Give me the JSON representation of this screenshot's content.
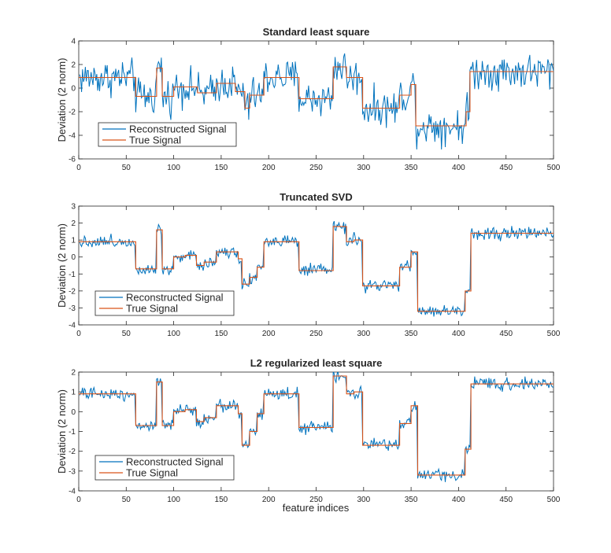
{
  "colors": {
    "reconstructed": "#0072BD",
    "true_signal": "#D95319",
    "axes": "#262626",
    "background": "#ffffff"
  },
  "figure": {
    "xlabel": "feature indices"
  },
  "chart_data": [
    {
      "type": "line",
      "title": "Standard least square",
      "ylabel": "Deviation (2 norm)",
      "xlabel": "",
      "xlim": [
        0,
        500
      ],
      "ylim": [
        -6,
        4
      ],
      "xticks": [
        "0",
        "50",
        "100",
        "150",
        "200",
        "250",
        "300",
        "350",
        "400",
        "450",
        "500"
      ],
      "yticks": [
        "-6",
        "-4",
        "-2",
        "0",
        "2",
        "4"
      ],
      "legend": {
        "position": "bottom-left",
        "entries": [
          "Reconstructed Signal",
          "True Signal"
        ]
      },
      "noise": 0.75,
      "series": [
        {
          "name": "Reconstructed Signal",
          "style": "noisy"
        },
        {
          "name": "True Signal",
          "style": "step",
          "segments": [
            [
              0,
              60,
              0.9
            ],
            [
              60,
              82,
              -0.7
            ],
            [
              82,
              88,
              1.7
            ],
            [
              88,
              100,
              -0.7
            ],
            [
              100,
              125,
              0.1
            ],
            [
              125,
              145,
              -0.4
            ],
            [
              145,
              165,
              0.4
            ],
            [
              165,
              175,
              -0.3
            ],
            [
              175,
              180,
              -1.7
            ],
            [
              180,
              195,
              -0.6
            ],
            [
              195,
              232,
              0.9
            ],
            [
              232,
              268,
              -0.9
            ],
            [
              268,
              282,
              1.8
            ],
            [
              282,
              292,
              0.9
            ],
            [
              292,
              299,
              0.9
            ],
            [
              299,
              338,
              -1.7
            ],
            [
              338,
              350,
              -0.6
            ],
            [
              350,
              355,
              0.3
            ],
            [
              355,
              408,
              -3.2
            ],
            [
              408,
              412,
              -2.0
            ],
            [
              412,
              500,
              1.4
            ]
          ]
        }
      ]
    },
    {
      "type": "line",
      "title": "Truncated SVD",
      "ylabel": "Deviation (2 norm)",
      "xlabel": "",
      "xlim": [
        0,
        500
      ],
      "ylim": [
        -4,
        3
      ],
      "xticks": [
        "0",
        "50",
        "100",
        "150",
        "200",
        "250",
        "300",
        "350",
        "400",
        "450",
        "500"
      ],
      "yticks": [
        "-4",
        "-3",
        "-2",
        "-1",
        "0",
        "1",
        "2",
        "3"
      ],
      "legend": {
        "position": "bottom-left",
        "entries": [
          "Reconstructed Signal",
          "True Signal"
        ]
      },
      "noise": 0.18,
      "series": [
        {
          "name": "Reconstructed Signal",
          "style": "noisy"
        },
        {
          "name": "True Signal",
          "style": "step",
          "segments": [
            [
              0,
              60,
              0.9
            ],
            [
              60,
              82,
              -0.7
            ],
            [
              82,
              88,
              1.6
            ],
            [
              88,
              100,
              -0.7
            ],
            [
              100,
              112,
              0.0
            ],
            [
              112,
              124,
              0.1
            ],
            [
              124,
              132,
              -0.5
            ],
            [
              132,
              145,
              -0.3
            ],
            [
              145,
              160,
              0.3
            ],
            [
              160,
              168,
              0.3
            ],
            [
              168,
              172,
              -0.1
            ],
            [
              172,
              180,
              -1.6
            ],
            [
              180,
              188,
              -1.2
            ],
            [
              188,
              195,
              -0.6
            ],
            [
              195,
              232,
              0.9
            ],
            [
              232,
              268,
              -0.8
            ],
            [
              268,
              282,
              1.8
            ],
            [
              282,
              290,
              0.9
            ],
            [
              290,
              299,
              1.0
            ],
            [
              299,
              338,
              -1.7
            ],
            [
              338,
              350,
              -0.6
            ],
            [
              350,
              357,
              0.3
            ],
            [
              357,
              407,
              -3.2
            ],
            [
              407,
              413,
              -2.0
            ],
            [
              413,
              500,
              1.4
            ]
          ]
        }
      ]
    },
    {
      "type": "line",
      "title": "L2 regularized least square",
      "ylabel": "Deviation (2 norm)",
      "xlabel": "feature indices",
      "xlim": [
        0,
        500
      ],
      "ylim": [
        -4,
        2
      ],
      "xticks": [
        "0",
        "50",
        "100",
        "150",
        "200",
        "250",
        "300",
        "350",
        "400",
        "450",
        "500"
      ],
      "yticks": [
        "-4",
        "-3",
        "-2",
        "-1",
        "0",
        "1",
        "2"
      ],
      "legend": {
        "position": "bottom-left",
        "entries": [
          "Reconstructed Signal",
          "True Signal"
        ]
      },
      "noise": 0.15,
      "series": [
        {
          "name": "Reconstructed Signal",
          "style": "noisy"
        },
        {
          "name": "True Signal",
          "style": "step",
          "segments": [
            [
              0,
              60,
              0.9
            ],
            [
              60,
              82,
              -0.7
            ],
            [
              82,
              88,
              1.5
            ],
            [
              88,
              100,
              -0.7
            ],
            [
              100,
              112,
              0.0
            ],
            [
              112,
              124,
              0.1
            ],
            [
              124,
              132,
              -0.5
            ],
            [
              132,
              145,
              -0.3
            ],
            [
              145,
              160,
              0.3
            ],
            [
              160,
              168,
              0.3
            ],
            [
              168,
              172,
              -0.1
            ],
            [
              172,
              180,
              -1.7
            ],
            [
              180,
              188,
              -1.0
            ],
            [
              188,
              195,
              -0.1
            ],
            [
              195,
              232,
              0.9
            ],
            [
              232,
              268,
              -0.8
            ],
            [
              268,
              282,
              1.8
            ],
            [
              282,
              290,
              0.9
            ],
            [
              290,
              299,
              1.0
            ],
            [
              299,
              338,
              -1.7
            ],
            [
              338,
              350,
              -0.6
            ],
            [
              350,
              357,
              0.3
            ],
            [
              357,
              407,
              -3.2
            ],
            [
              407,
              413,
              -1.9
            ],
            [
              413,
              500,
              1.4
            ]
          ]
        }
      ]
    }
  ]
}
